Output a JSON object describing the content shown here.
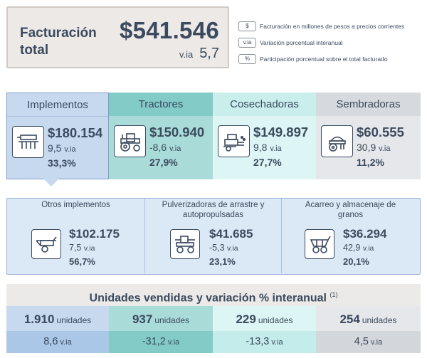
{
  "total": {
    "label": "Facturación total",
    "amount": "$541.546",
    "var_unit": "v.ia",
    "var_value": "5,7"
  },
  "legend": [
    {
      "badge": "$",
      "text": "Facturación en millones de pesos a precios corrientes"
    },
    {
      "badge": "v.ia",
      "text": "Variación porcentual interanual"
    },
    {
      "badge": "%",
      "text": "Participación porcentual sobre el total facturado"
    }
  ],
  "categories": [
    {
      "name": "Implementos",
      "icon": "implement-icon",
      "amount": "$180.154",
      "var": "9,5",
      "var_unit": "v.ia",
      "share": "33,3%",
      "color": "#c7d9ef"
    },
    {
      "name": "Tractores",
      "icon": "tractor-icon",
      "amount": "$150.940",
      "var": "-8,6",
      "var_unit": "v.ia",
      "share": "27,9%",
      "color": "#a9dcd9"
    },
    {
      "name": "Cosechadoras",
      "icon": "harvester-icon",
      "amount": "$149.897",
      "var": "9,8",
      "var_unit": "v.ia",
      "share": "27,7%",
      "color": "#ddf5f4"
    },
    {
      "name": "Sembradoras",
      "icon": "seeder-icon",
      "amount": "$60.555",
      "var": "30,9",
      "var_unit": "v.ia",
      "share": "11,2%",
      "color": "#e5e7ea"
    }
  ],
  "subcategories": [
    {
      "name": "Otros implementos",
      "icon": "trailer-implement-icon",
      "amount": "$102.175",
      "var": "7,5",
      "var_unit": "v.ia",
      "share": "56,7%"
    },
    {
      "name": "Pulverizadoras de arrastre y autopropulsadas",
      "icon": "sprayer-icon",
      "amount": "$41.685",
      "var": "-5,3",
      "var_unit": "v.ia",
      "share": "23,1%"
    },
    {
      "name": "Acarreo y almacenaje de granos",
      "icon": "grain-cart-icon",
      "amount": "$36.294",
      "var": "42,9",
      "var_unit": "v.ia",
      "share": "20,1%"
    }
  ],
  "units": {
    "title": "Unidades vendidas y variación % interanual",
    "footnote": "(1)",
    "items": [
      {
        "count": "1.910",
        "count_unit": "unidades",
        "var": "8,6",
        "var_unit": "v.ia"
      },
      {
        "count": "937",
        "count_unit": "unidades",
        "var": "-31,2",
        "var_unit": "v.ia"
      },
      {
        "count": "229",
        "count_unit": "unidades",
        "var": "-13,3",
        "var_unit": "v.ia"
      },
      {
        "count": "254",
        "count_unit": "unidades",
        "var": "4,5",
        "var_unit": "v.ia"
      }
    ]
  }
}
